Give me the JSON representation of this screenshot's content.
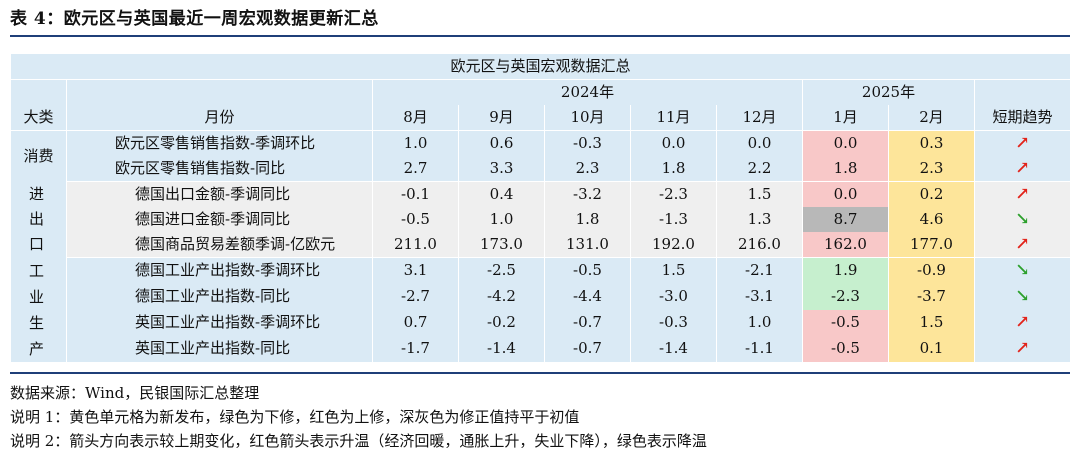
{
  "title": "表 4：欧元区与英国最近一周宏观数据更新汇总",
  "table": {
    "caption": "欧元区与英国宏观数据汇总",
    "year1": "2024年",
    "year2": "2025年",
    "col_cat": "大类",
    "col_month": "月份",
    "months": [
      "8月",
      "9月",
      "10月",
      "11月",
      "12月",
      "1月",
      "2月"
    ],
    "col_trend": "短期趋势",
    "groups": [
      {
        "category": "消费"
      },
      {
        "category": "进出口"
      },
      {
        "category": "工业生产"
      }
    ],
    "rows": [
      {
        "name": "欧元区零售销售指数-季调环比",
        "values": [
          "1.0",
          "0.6",
          "-0.3",
          "0.0",
          "0.0",
          "0.0",
          "0.3"
        ],
        "trend": "up"
      },
      {
        "name": "欧元区零售销售指数-同比",
        "values": [
          "2.7",
          "3.3",
          "2.3",
          "1.8",
          "2.2",
          "1.8",
          "2.3"
        ],
        "trend": "up"
      },
      {
        "name": "德国出口金额-季调同比",
        "values": [
          "-0.1",
          "0.4",
          "-3.2",
          "-2.3",
          "1.5",
          "0.0",
          "0.2"
        ],
        "trend": "up"
      },
      {
        "name": "德国进口金额-季调同比",
        "values": [
          "-0.5",
          "1.0",
          "1.8",
          "-1.3",
          "1.3",
          "8.7",
          "4.6"
        ],
        "trend": "down"
      },
      {
        "name": "德国商品贸易差额季调-亿欧元",
        "values": [
          "211.0",
          "173.0",
          "131.0",
          "192.0",
          "216.0",
          "162.0",
          "177.0"
        ],
        "trend": "up"
      },
      {
        "name": "德国工业产出指数-季调环比",
        "values": [
          "3.1",
          "-2.5",
          "-0.5",
          "1.5",
          "-2.1",
          "1.9",
          "-0.9"
        ],
        "trend": "down"
      },
      {
        "name": "德国工业产出指数-同比",
        "values": [
          "-2.7",
          "-4.2",
          "-4.4",
          "-3.0",
          "-3.1",
          "-2.3",
          "-3.7"
        ],
        "trend": "down"
      },
      {
        "name": "英国工业产出指数-季调环比",
        "values": [
          "0.7",
          "-0.2",
          "-0.7",
          "-0.3",
          "1.0",
          "-0.5",
          "1.5"
        ],
        "trend": "up"
      },
      {
        "name": "英国工业产出指数-同比",
        "values": [
          "-1.7",
          "-1.4",
          "-0.7",
          "-1.4",
          "-1.1",
          "-0.5",
          "0.1"
        ],
        "trend": "up"
      }
    ]
  },
  "colors": {
    "header_bg": "#daeaf5",
    "band_gray": "#efefef",
    "red_cell": "#f8c8c8",
    "green_cell": "#c6efce",
    "yellow_cell": "#fde59a",
    "gray_cell": "#b8b8b8",
    "arrow_up": "#e2231a",
    "arrow_down": "#2ca02c",
    "rule": "#1f3f79"
  },
  "notes": {
    "source": "数据来源：Wind，民银国际汇总整理",
    "note1": "说明 1：黄色单元格为新发布，绿色为下修，红色为上修，深灰色为修正值持平于初值",
    "note2": "说明 2：箭头方向表示较上期变化，红色箭头表示升温（经济回暖，通胀上升，失业下降），绿色表示降温"
  }
}
